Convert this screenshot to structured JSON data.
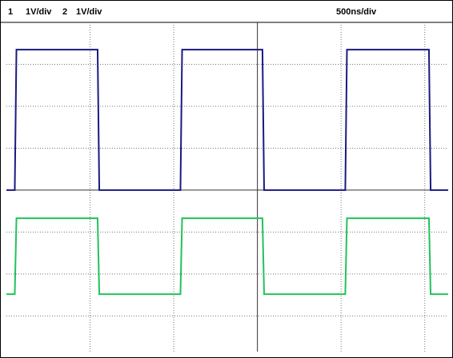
{
  "chart_data": {
    "type": "line",
    "channels": [
      {
        "label": "1",
        "scale": "1V/div"
      },
      {
        "label": "2",
        "scale": "1V/div"
      }
    ],
    "timebase": "500ns/div",
    "x": [
      -3,
      -2.9,
      -2.88,
      -1.91,
      -1.89,
      -0.92,
      -0.9,
      0.06,
      0.08,
      1.05,
      1.07,
      2.05,
      2.07,
      2.28
    ],
    "series": [
      {
        "color": "#1a1a80",
        "values": [
          0,
          0,
          3.35,
          3.35,
          0,
          0,
          3.35,
          3.35,
          0,
          0,
          3.35,
          3.35,
          0,
          0
        ]
      },
      {
        "color": "#22c25a",
        "values": [
          -2.48,
          -2.48,
          -0.67,
          -0.67,
          -2.48,
          -2.48,
          -0.67,
          -0.67,
          -2.48,
          -2.48,
          -0.67,
          -0.67,
          -2.48,
          -2.48
        ]
      }
    ],
    "xlim": [
      -3,
      2.28
    ],
    "ylim": [
      -3.85,
      4
    ],
    "xticks": [
      -2,
      -1,
      0,
      1,
      2
    ],
    "yticks": [
      -3,
      -2,
      -1,
      0,
      1,
      2,
      3
    ],
    "grid": true
  }
}
